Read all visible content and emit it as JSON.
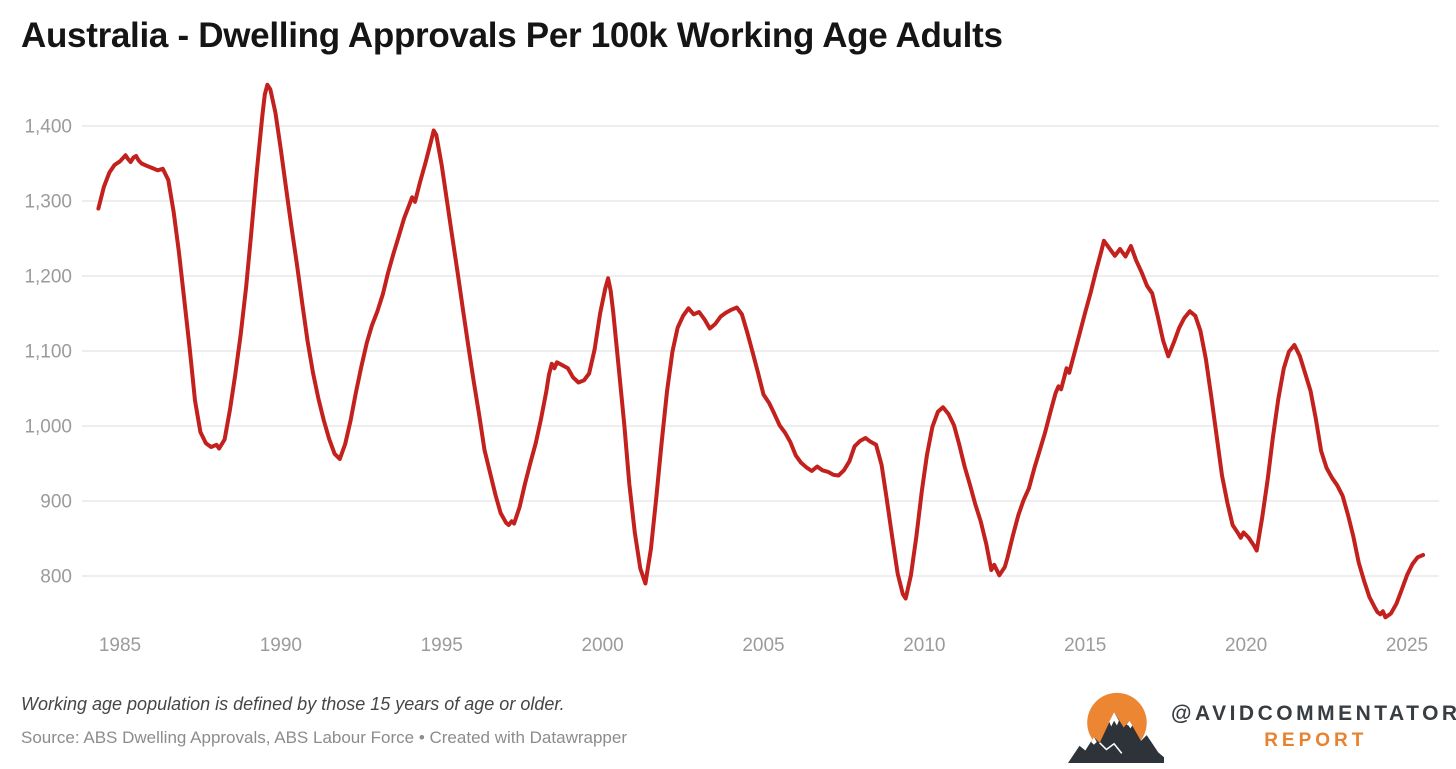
{
  "header": {
    "title": "Australia - Dwelling Approvals Per 100k Working Age Adults"
  },
  "chart_data": {
    "type": "line",
    "title": "Australia - Dwelling Approvals Per 100k Working Age Adults",
    "xlabel": "",
    "ylabel": "",
    "grid": "horizontal-only",
    "legend": "none",
    "line_color": "#c2211d",
    "gridline_color": "#dcdcdc",
    "tick_label_color": "#9b9b9b",
    "xlim": [
      1984.1,
      2025.9
    ],
    "ylim": [
      735,
      1465
    ],
    "x_ticks": [
      1985,
      1990,
      1995,
      2000,
      2005,
      2010,
      2015,
      2020,
      2025
    ],
    "y_ticks": [
      800,
      900,
      1000,
      1100,
      1200,
      1300,
      1400
    ],
    "y_tick_labels": [
      "800",
      "900",
      "1,000",
      "1,100",
      "1,200",
      "1,300",
      "1,400"
    ],
    "points": [
      [
        1984.33,
        1290
      ],
      [
        1984.5,
        1319
      ],
      [
        1984.67,
        1338
      ],
      [
        1984.83,
        1348
      ],
      [
        1985.0,
        1353
      ],
      [
        1985.17,
        1361
      ],
      [
        1985.25,
        1356
      ],
      [
        1985.33,
        1352
      ],
      [
        1985.42,
        1358
      ],
      [
        1985.5,
        1360
      ],
      [
        1985.58,
        1354
      ],
      [
        1985.67,
        1350
      ],
      [
        1985.83,
        1347
      ],
      [
        1986.0,
        1344
      ],
      [
        1986.17,
        1341
      ],
      [
        1986.33,
        1343
      ],
      [
        1986.5,
        1328
      ],
      [
        1986.67,
        1285
      ],
      [
        1986.83,
        1232
      ],
      [
        1987.0,
        1168
      ],
      [
        1987.17,
        1102
      ],
      [
        1987.33,
        1034
      ],
      [
        1987.5,
        992
      ],
      [
        1987.67,
        977
      ],
      [
        1987.83,
        972
      ],
      [
        1988.0,
        975
      ],
      [
        1988.08,
        970
      ],
      [
        1988.25,
        982
      ],
      [
        1988.42,
        1022
      ],
      [
        1988.58,
        1068
      ],
      [
        1988.75,
        1122
      ],
      [
        1988.92,
        1185
      ],
      [
        1989.08,
        1258
      ],
      [
        1989.25,
        1338
      ],
      [
        1989.42,
        1412
      ],
      [
        1989.5,
        1442
      ],
      [
        1989.58,
        1455
      ],
      [
        1989.67,
        1449
      ],
      [
        1989.83,
        1418
      ],
      [
        1990.0,
        1368
      ],
      [
        1990.17,
        1315
      ],
      [
        1990.33,
        1265
      ],
      [
        1990.5,
        1215
      ],
      [
        1990.67,
        1162
      ],
      [
        1990.83,
        1113
      ],
      [
        1991.0,
        1071
      ],
      [
        1991.17,
        1036
      ],
      [
        1991.33,
        1008
      ],
      [
        1991.5,
        983
      ],
      [
        1991.67,
        963
      ],
      [
        1991.83,
        956
      ],
      [
        1992.0,
        976
      ],
      [
        1992.17,
        1008
      ],
      [
        1992.33,
        1044
      ],
      [
        1992.5,
        1079
      ],
      [
        1992.67,
        1111
      ],
      [
        1992.83,
        1134
      ],
      [
        1993.0,
        1153
      ],
      [
        1993.17,
        1176
      ],
      [
        1993.33,
        1204
      ],
      [
        1993.5,
        1230
      ],
      [
        1993.67,
        1254
      ],
      [
        1993.83,
        1277
      ],
      [
        1994.0,
        1296
      ],
      [
        1994.08,
        1305
      ],
      [
        1994.17,
        1299
      ],
      [
        1994.33,
        1326
      ],
      [
        1994.5,
        1352
      ],
      [
        1994.67,
        1380
      ],
      [
        1994.75,
        1394
      ],
      [
        1994.83,
        1388
      ],
      [
        1995.0,
        1347
      ],
      [
        1995.17,
        1298
      ],
      [
        1995.33,
        1251
      ],
      [
        1995.5,
        1203
      ],
      [
        1995.67,
        1152
      ],
      [
        1995.83,
        1105
      ],
      [
        1996.0,
        1058
      ],
      [
        1996.17,
        1013
      ],
      [
        1996.33,
        968
      ],
      [
        1996.5,
        938
      ],
      [
        1996.67,
        908
      ],
      [
        1996.83,
        884
      ],
      [
        1997.0,
        871
      ],
      [
        1997.08,
        868
      ],
      [
        1997.17,
        873
      ],
      [
        1997.25,
        870
      ],
      [
        1997.42,
        892
      ],
      [
        1997.58,
        922
      ],
      [
        1997.75,
        950
      ],
      [
        1997.92,
        977
      ],
      [
        1998.08,
        1008
      ],
      [
        1998.25,
        1046
      ],
      [
        1998.33,
        1068
      ],
      [
        1998.42,
        1083
      ],
      [
        1998.5,
        1077
      ],
      [
        1998.58,
        1085
      ],
      [
        1998.75,
        1081
      ],
      [
        1998.92,
        1077
      ],
      [
        1999.08,
        1065
      ],
      [
        1999.25,
        1058
      ],
      [
        1999.42,
        1061
      ],
      [
        1999.58,
        1070
      ],
      [
        1999.75,
        1102
      ],
      [
        1999.92,
        1150
      ],
      [
        2000.08,
        1183
      ],
      [
        2000.17,
        1197
      ],
      [
        2000.25,
        1180
      ],
      [
        2000.33,
        1152
      ],
      [
        2000.5,
        1078
      ],
      [
        2000.67,
        1003
      ],
      [
        2000.83,
        923
      ],
      [
        2001.0,
        858
      ],
      [
        2001.17,
        810
      ],
      [
        2001.33,
        790
      ],
      [
        2001.5,
        836
      ],
      [
        2001.67,
        906
      ],
      [
        2001.83,
        976
      ],
      [
        2002.0,
        1046
      ],
      [
        2002.17,
        1099
      ],
      [
        2002.33,
        1131
      ],
      [
        2002.5,
        1147
      ],
      [
        2002.67,
        1157
      ],
      [
        2002.83,
        1149
      ],
      [
        2003.0,
        1152
      ],
      [
        2003.17,
        1142
      ],
      [
        2003.33,
        1130
      ],
      [
        2003.5,
        1136
      ],
      [
        2003.67,
        1146
      ],
      [
        2003.83,
        1151
      ],
      [
        2004.0,
        1155
      ],
      [
        2004.17,
        1158
      ],
      [
        2004.33,
        1149
      ],
      [
        2004.5,
        1124
      ],
      [
        2004.67,
        1097
      ],
      [
        2004.83,
        1071
      ],
      [
        2005.0,
        1042
      ],
      [
        2005.17,
        1031
      ],
      [
        2005.33,
        1017
      ],
      [
        2005.5,
        1001
      ],
      [
        2005.67,
        991
      ],
      [
        2005.83,
        979
      ],
      [
        2006.0,
        961
      ],
      [
        2006.17,
        951
      ],
      [
        2006.33,
        945
      ],
      [
        2006.5,
        940
      ],
      [
        2006.67,
        946
      ],
      [
        2006.83,
        941
      ],
      [
        2007.0,
        939
      ],
      [
        2007.17,
        935
      ],
      [
        2007.33,
        934
      ],
      [
        2007.5,
        941
      ],
      [
        2007.67,
        953
      ],
      [
        2007.83,
        973
      ],
      [
        2008.0,
        980
      ],
      [
        2008.17,
        984
      ],
      [
        2008.33,
        979
      ],
      [
        2008.5,
        975
      ],
      [
        2008.67,
        948
      ],
      [
        2008.83,
        903
      ],
      [
        2009.0,
        852
      ],
      [
        2009.17,
        803
      ],
      [
        2009.33,
        776
      ],
      [
        2009.42,
        770
      ],
      [
        2009.58,
        801
      ],
      [
        2009.75,
        852
      ],
      [
        2009.92,
        913
      ],
      [
        2010.08,
        961
      ],
      [
        2010.25,
        999
      ],
      [
        2010.42,
        1019
      ],
      [
        2010.58,
        1025
      ],
      [
        2010.75,
        1016
      ],
      [
        2010.92,
        1001
      ],
      [
        2011.08,
        976
      ],
      [
        2011.25,
        946
      ],
      [
        2011.42,
        921
      ],
      [
        2011.58,
        896
      ],
      [
        2011.75,
        873
      ],
      [
        2011.92,
        843
      ],
      [
        2012.08,
        808
      ],
      [
        2012.17,
        815
      ],
      [
        2012.33,
        801
      ],
      [
        2012.5,
        812
      ],
      [
        2012.58,
        824
      ],
      [
        2012.75,
        854
      ],
      [
        2012.92,
        881
      ],
      [
        2013.08,
        901
      ],
      [
        2013.25,
        917
      ],
      [
        2013.42,
        944
      ],
      [
        2013.58,
        967
      ],
      [
        2013.75,
        991
      ],
      [
        2013.92,
        1019
      ],
      [
        2014.08,
        1044
      ],
      [
        2014.17,
        1053
      ],
      [
        2014.25,
        1049
      ],
      [
        2014.42,
        1077
      ],
      [
        2014.5,
        1071
      ],
      [
        2014.67,
        1098
      ],
      [
        2014.83,
        1124
      ],
      [
        2015.0,
        1152
      ],
      [
        2015.17,
        1178
      ],
      [
        2015.33,
        1206
      ],
      [
        2015.5,
        1233
      ],
      [
        2015.58,
        1247
      ],
      [
        2015.75,
        1237
      ],
      [
        2015.92,
        1227
      ],
      [
        2016.08,
        1236
      ],
      [
        2016.25,
        1226
      ],
      [
        2016.42,
        1240
      ],
      [
        2016.58,
        1221
      ],
      [
        2016.75,
        1205
      ],
      [
        2016.92,
        1187
      ],
      [
        2017.08,
        1177
      ],
      [
        2017.25,
        1147
      ],
      [
        2017.42,
        1114
      ],
      [
        2017.58,
        1093
      ],
      [
        2017.75,
        1111
      ],
      [
        2017.92,
        1131
      ],
      [
        2018.08,
        1144
      ],
      [
        2018.25,
        1153
      ],
      [
        2018.42,
        1147
      ],
      [
        2018.58,
        1127
      ],
      [
        2018.75,
        1089
      ],
      [
        2018.92,
        1038
      ],
      [
        2019.08,
        988
      ],
      [
        2019.25,
        934
      ],
      [
        2019.42,
        897
      ],
      [
        2019.58,
        868
      ],
      [
        2019.75,
        857
      ],
      [
        2019.83,
        851
      ],
      [
        2019.92,
        858
      ],
      [
        2020.08,
        851
      ],
      [
        2020.25,
        840
      ],
      [
        2020.33,
        834
      ],
      [
        2020.5,
        878
      ],
      [
        2020.67,
        929
      ],
      [
        2020.83,
        984
      ],
      [
        2021.0,
        1036
      ],
      [
        2021.17,
        1077
      ],
      [
        2021.33,
        1099
      ],
      [
        2021.5,
        1108
      ],
      [
        2021.67,
        1093
      ],
      [
        2021.83,
        1071
      ],
      [
        2022.0,
        1047
      ],
      [
        2022.17,
        1009
      ],
      [
        2022.33,
        967
      ],
      [
        2022.5,
        944
      ],
      [
        2022.67,
        931
      ],
      [
        2022.83,
        921
      ],
      [
        2023.0,
        907
      ],
      [
        2023.17,
        881
      ],
      [
        2023.33,
        853
      ],
      [
        2023.5,
        818
      ],
      [
        2023.67,
        793
      ],
      [
        2023.83,
        772
      ],
      [
        2024.0,
        758
      ],
      [
        2024.08,
        752
      ],
      [
        2024.17,
        749
      ],
      [
        2024.25,
        753
      ],
      [
        2024.33,
        745
      ],
      [
        2024.5,
        750
      ],
      [
        2024.67,
        763
      ],
      [
        2024.83,
        781
      ],
      [
        2025.0,
        801
      ],
      [
        2025.17,
        816
      ],
      [
        2025.33,
        825
      ],
      [
        2025.5,
        828
      ]
    ]
  },
  "footer": {
    "note": "Working age population is defined by those 15 years of age or older.",
    "source": "Source: ABS Dwelling Approvals, ABS Labour Force • Created with Datawrapper"
  },
  "logo": {
    "handle": "@AVIDCOMMENTATOR",
    "sub": "Report",
    "colors": {
      "sun": "#ec8633",
      "mountain": "#2d3338",
      "snow": "#ffffff",
      "handle_text": "#383d41",
      "sub_text": "#e8822e"
    }
  }
}
